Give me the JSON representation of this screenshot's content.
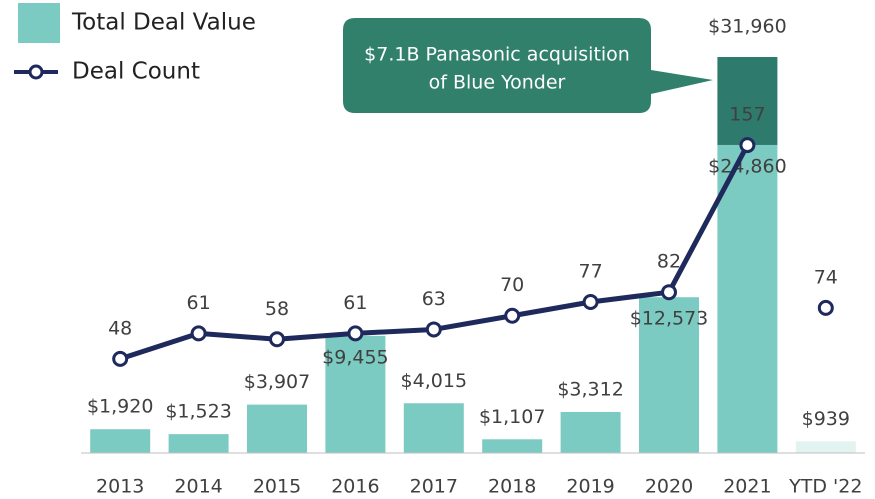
{
  "chart_data": {
    "type": "bar",
    "categories": [
      "2013",
      "2014",
      "2015",
      "2016",
      "2017",
      "2018",
      "2019",
      "2020",
      "2021",
      "YTD '22"
    ],
    "series": [
      {
        "name": "Total Deal Value",
        "type": "bar",
        "color": "#7ccbc2",
        "colors": [
          "#7ccbc2",
          "#7ccbc2",
          "#7ccbc2",
          "#7ccbc2",
          "#7ccbc2",
          "#7ccbc2",
          "#7ccbc2",
          "#7ccbc2",
          "#7ccbc2",
          "#e2f3f0"
        ],
        "values": [
          1920,
          1523,
          3907,
          9455,
          4015,
          1107,
          3312,
          12573,
          24860,
          939
        ],
        "value_labels": [
          "$1,920",
          "$1,523",
          "$3,907",
          "$9,455",
          "$4,015",
          "$1,107",
          "$3,312",
          "$12,573",
          "$24,860",
          "$939"
        ]
      },
      {
        "type": "bar",
        "stacked": true,
        "color": "#2e7a6c",
        "values": [
          null,
          null,
          null,
          null,
          null,
          null,
          null,
          null,
          7100,
          null
        ]
      },
      {
        "name": "Deal Count",
        "type": "line",
        "axis": "y2",
        "color": "#1f2a5c",
        "values": [
          48,
          61,
          58,
          61,
          63,
          70,
          77,
          82,
          157,
          74
        ]
      }
    ],
    "totals": [
      null,
      null,
      null,
      null,
      null,
      null,
      null,
      null,
      31960,
      null
    ],
    "total_labels": [
      null,
      null,
      null,
      null,
      null,
      null,
      null,
      null,
      "$31,960",
      null
    ],
    "annotation": {
      "lines": [
        "$7.1B Panasonic acquisition",
        "of Blue Yonder"
      ],
      "color": "#31806c"
    },
    "ylim": [
      0,
      36560
    ],
    "y2lim": [
      0,
      231
    ],
    "line_break_before": 9,
    "legend": "upper left"
  }
}
